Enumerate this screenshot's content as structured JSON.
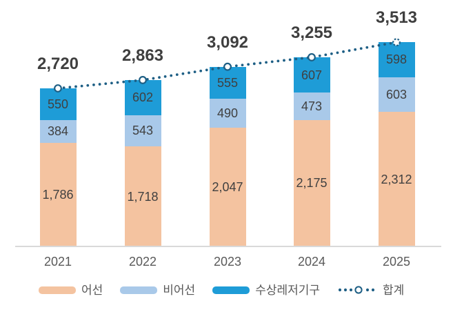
{
  "chart_data": {
    "type": "bar",
    "subtype": "stacked-column-with-total-line",
    "title": "",
    "categories": [
      "2021",
      "2022",
      "2023",
      "2024",
      "2025"
    ],
    "stacked": true,
    "grid": false,
    "y_axis_visible": false,
    "ylim": [
      0,
      3600
    ],
    "legend_position": "bottom",
    "series": [
      {
        "name": "어선",
        "type": "bar",
        "color": "#F4C3A0",
        "values": [
          1786,
          1718,
          2047,
          2175,
          2312
        ],
        "value_labels": [
          "1,786",
          "1,718",
          "2,047",
          "2,175",
          "2,312"
        ]
      },
      {
        "name": "비어선",
        "type": "bar",
        "color": "#A9C9E9",
        "values": [
          384,
          543,
          490,
          473,
          603
        ],
        "value_labels": [
          "384",
          "543",
          "490",
          "473",
          "603"
        ]
      },
      {
        "name": "수상레저기구",
        "type": "bar",
        "color": "#1E9CD7",
        "values": [
          550,
          602,
          555,
          607,
          598
        ],
        "value_labels": [
          "550",
          "602",
          "555",
          "607",
          "598"
        ]
      },
      {
        "name": "합계",
        "type": "line",
        "line_style": "dotted",
        "marker": "open-circle",
        "last_marker_style": "dashed-open-circle",
        "color": "#1E5F85",
        "values": [
          2720,
          2863,
          3092,
          3255,
          3513
        ],
        "value_labels": [
          "2,720",
          "2,863",
          "3,092",
          "3,255",
          "3,513"
        ]
      }
    ]
  },
  "legend": {
    "items": [
      {
        "label": "어선",
        "swatch": "bar",
        "color": "#F4C3A0"
      },
      {
        "label": "비어선",
        "swatch": "bar",
        "color": "#A9C9E9"
      },
      {
        "label": "수상레저기구",
        "swatch": "bar",
        "color": "#1E9CD7"
      },
      {
        "label": "합계",
        "swatch": "dotted-line-with-open-circle",
        "color": "#1E5F85"
      }
    ]
  },
  "colors": {
    "background": "#FFFFFF",
    "axis_line": "#D9D9D9",
    "total_label_text": "#3F3F3F",
    "segment_label_text": "#404040",
    "category_label_text": "#595959",
    "legend_text": "#595959"
  }
}
